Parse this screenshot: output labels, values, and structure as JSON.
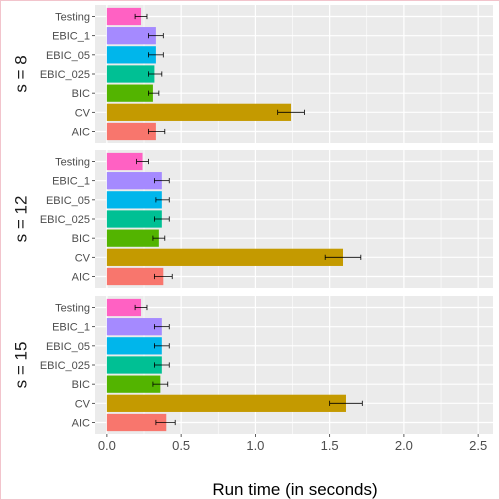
{
  "chart_data": {
    "type": "bar",
    "orientation": "horizontal",
    "xlabel": "Run time (in seconds)",
    "ylabel": "",
    "xlim": [
      -0.08,
      2.6
    ],
    "xticks": [
      0.0,
      0.5,
      1.0,
      1.5,
      2.0,
      2.5
    ],
    "xtick_labels": [
      "0.0",
      "0.5",
      "1.0",
      "1.5",
      "2.0",
      "2.5"
    ],
    "categories": [
      "Testing",
      "EBIC_1",
      "EBIC_05",
      "EBIC_025",
      "BIC",
      "CV",
      "AIC"
    ],
    "colors": {
      "Testing": "#FF61C3",
      "EBIC_1": "#A58AFF",
      "EBIC_05": "#00B6EB",
      "EBIC_025": "#00C094",
      "BIC": "#53B400",
      "CV": "#C49A00",
      "AIC": "#F8766D"
    },
    "grid": true,
    "legend": "none",
    "panels": [
      {
        "label": "s = 8",
        "values": [
          0.23,
          0.33,
          0.33,
          0.32,
          0.31,
          1.24,
          0.33
        ],
        "error_low": [
          0.19,
          0.28,
          0.28,
          0.28,
          0.28,
          1.15,
          0.28
        ],
        "error_high": [
          0.27,
          0.38,
          0.38,
          0.37,
          0.35,
          1.33,
          0.39
        ]
      },
      {
        "label": "s = 12",
        "values": [
          0.24,
          0.37,
          0.37,
          0.37,
          0.35,
          1.59,
          0.38
        ],
        "error_low": [
          0.2,
          0.32,
          0.33,
          0.32,
          0.31,
          1.47,
          0.32
        ],
        "error_high": [
          0.28,
          0.42,
          0.42,
          0.42,
          0.39,
          1.71,
          0.44
        ]
      },
      {
        "label": "s = 15",
        "values": [
          0.23,
          0.37,
          0.37,
          0.37,
          0.36,
          1.61,
          0.4
        ],
        "error_low": [
          0.19,
          0.32,
          0.32,
          0.32,
          0.31,
          1.5,
          0.33
        ],
        "error_high": [
          0.27,
          0.42,
          0.42,
          0.42,
          0.41,
          1.72,
          0.46
        ]
      }
    ]
  }
}
